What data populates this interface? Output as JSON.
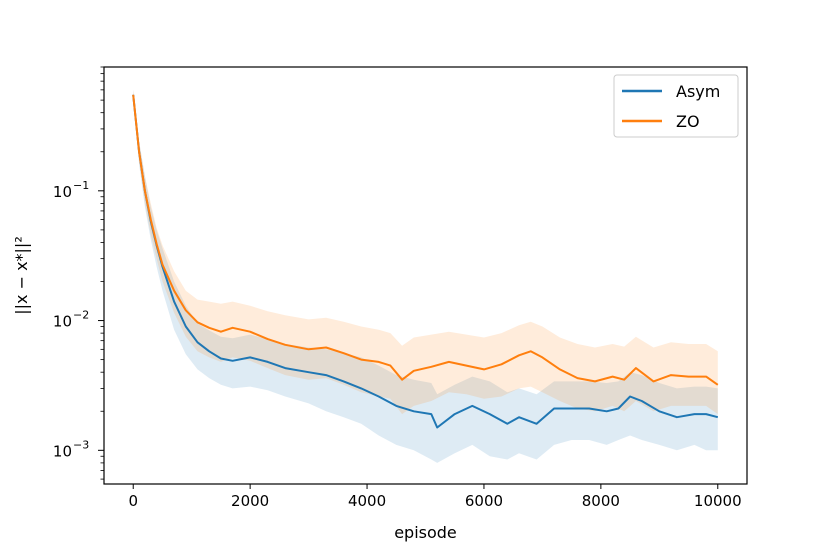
{
  "colors": {
    "asym": "#1f77b4",
    "zo": "#ff7f0e",
    "asym_band": "#1f77b4",
    "zo_band": "#ff7f0e"
  },
  "chart_data": {
    "type": "line",
    "xlabel": "episode",
    "ylabel_html": "||x − x*||²",
    "y_scale": "log",
    "xlim": [
      -500,
      10500
    ],
    "ylim": [
      0.00055,
      0.9
    ],
    "x_ticks": [
      0,
      2000,
      4000,
      6000,
      8000,
      10000
    ],
    "x_tick_labels": [
      "0",
      "2000",
      "4000",
      "6000",
      "8000",
      "10000"
    ],
    "y_ticks": [
      0.001,
      0.01,
      0.1
    ],
    "y_tick_labels": [
      "10",
      "10",
      "10"
    ],
    "y_tick_exponents": [
      "−3",
      "−2",
      "−1"
    ],
    "grid": false,
    "legend": {
      "position": "top-right",
      "entries": [
        "Asym",
        "ZO"
      ]
    },
    "series": [
      {
        "name": "Asym",
        "x": [
          0,
          100,
          200,
          300,
          400,
          500,
          700,
          900,
          1100,
          1300,
          1500,
          1700,
          2000,
          2300,
          2600,
          3000,
          3300,
          3600,
          3900,
          4200,
          4500,
          4800,
          5100,
          5200,
          5500,
          5800,
          6100,
          6400,
          6600,
          6900,
          7200,
          7500,
          7800,
          8100,
          8300,
          8500,
          8700,
          9000,
          9300,
          9600,
          9800,
          10000
        ],
        "y": [
          0.55,
          0.2,
          0.1,
          0.058,
          0.038,
          0.026,
          0.014,
          0.009,
          0.0068,
          0.0058,
          0.0051,
          0.0049,
          0.0052,
          0.0048,
          0.0043,
          0.004,
          0.0038,
          0.0034,
          0.003,
          0.0026,
          0.0022,
          0.002,
          0.0019,
          0.0015,
          0.0019,
          0.0022,
          0.0019,
          0.0016,
          0.0018,
          0.0016,
          0.0021,
          0.0021,
          0.0021,
          0.002,
          0.0021,
          0.0026,
          0.0024,
          0.002,
          0.0018,
          0.0019,
          0.0019,
          0.0018
        ],
        "lower": [
          0.5,
          0.16,
          0.075,
          0.042,
          0.026,
          0.017,
          0.0085,
          0.0055,
          0.0042,
          0.0036,
          0.0032,
          0.003,
          0.0031,
          0.0029,
          0.0026,
          0.0023,
          0.002,
          0.0018,
          0.0016,
          0.0013,
          0.0011,
          0.001,
          0.00085,
          0.0008,
          0.00095,
          0.0011,
          0.0009,
          0.00085,
          0.00095,
          0.00085,
          0.0011,
          0.0012,
          0.0012,
          0.0011,
          0.0012,
          0.0013,
          0.0012,
          0.0011,
          0.001,
          0.0011,
          0.001,
          0.001
        ],
        "upper": [
          0.6,
          0.24,
          0.13,
          0.075,
          0.05,
          0.036,
          0.02,
          0.013,
          0.0095,
          0.0084,
          0.0075,
          0.0073,
          0.0078,
          0.0072,
          0.0066,
          0.0062,
          0.006,
          0.0056,
          0.0052,
          0.0045,
          0.0038,
          0.0035,
          0.0033,
          0.0027,
          0.0032,
          0.0037,
          0.0034,
          0.0028,
          0.003,
          0.0027,
          0.0034,
          0.0034,
          0.0034,
          0.0033,
          0.0034,
          0.004,
          0.0038,
          0.0033,
          0.003,
          0.0031,
          0.0031,
          0.003
        ]
      },
      {
        "name": "ZO",
        "x": [
          0,
          100,
          200,
          300,
          400,
          500,
          700,
          900,
          1100,
          1300,
          1500,
          1700,
          2000,
          2300,
          2600,
          3000,
          3300,
          3600,
          3900,
          4200,
          4400,
          4600,
          4800,
          5100,
          5400,
          5700,
          6000,
          6300,
          6600,
          6800,
          7000,
          7300,
          7600,
          7900,
          8200,
          8400,
          8600,
          8900,
          9200,
          9500,
          9800,
          10000
        ],
        "y": [
          0.55,
          0.2,
          0.1,
          0.06,
          0.039,
          0.027,
          0.017,
          0.012,
          0.0097,
          0.0088,
          0.0082,
          0.0088,
          0.0082,
          0.0072,
          0.0065,
          0.006,
          0.0062,
          0.0056,
          0.005,
          0.0048,
          0.0045,
          0.0035,
          0.0041,
          0.0044,
          0.0048,
          0.0045,
          0.0042,
          0.0046,
          0.0054,
          0.0058,
          0.0052,
          0.0042,
          0.0036,
          0.0034,
          0.0037,
          0.0035,
          0.0043,
          0.0034,
          0.0038,
          0.0037,
          0.0037,
          0.0032
        ],
        "lower": [
          0.5,
          0.17,
          0.08,
          0.046,
          0.03,
          0.02,
          0.0115,
          0.0075,
          0.0058,
          0.0052,
          0.0048,
          0.0052,
          0.0049,
          0.0043,
          0.0038,
          0.0035,
          0.0036,
          0.0032,
          0.0028,
          0.0026,
          0.0025,
          0.0019,
          0.0022,
          0.0024,
          0.0028,
          0.0027,
          0.0025,
          0.0026,
          0.003,
          0.0031,
          0.0028,
          0.0024,
          0.0021,
          0.002,
          0.0022,
          0.002,
          0.0024,
          0.002,
          0.0022,
          0.0022,
          0.0022,
          0.0019
        ],
        "upper": [
          0.6,
          0.24,
          0.13,
          0.08,
          0.052,
          0.038,
          0.024,
          0.017,
          0.0145,
          0.014,
          0.0135,
          0.014,
          0.013,
          0.0118,
          0.011,
          0.0102,
          0.0105,
          0.0098,
          0.009,
          0.0085,
          0.008,
          0.0064,
          0.0074,
          0.0078,
          0.0082,
          0.0078,
          0.0074,
          0.008,
          0.0092,
          0.0098,
          0.009,
          0.0074,
          0.0066,
          0.0062,
          0.0066,
          0.0063,
          0.0075,
          0.0062,
          0.0068,
          0.0066,
          0.0066,
          0.0058
        ]
      }
    ]
  }
}
